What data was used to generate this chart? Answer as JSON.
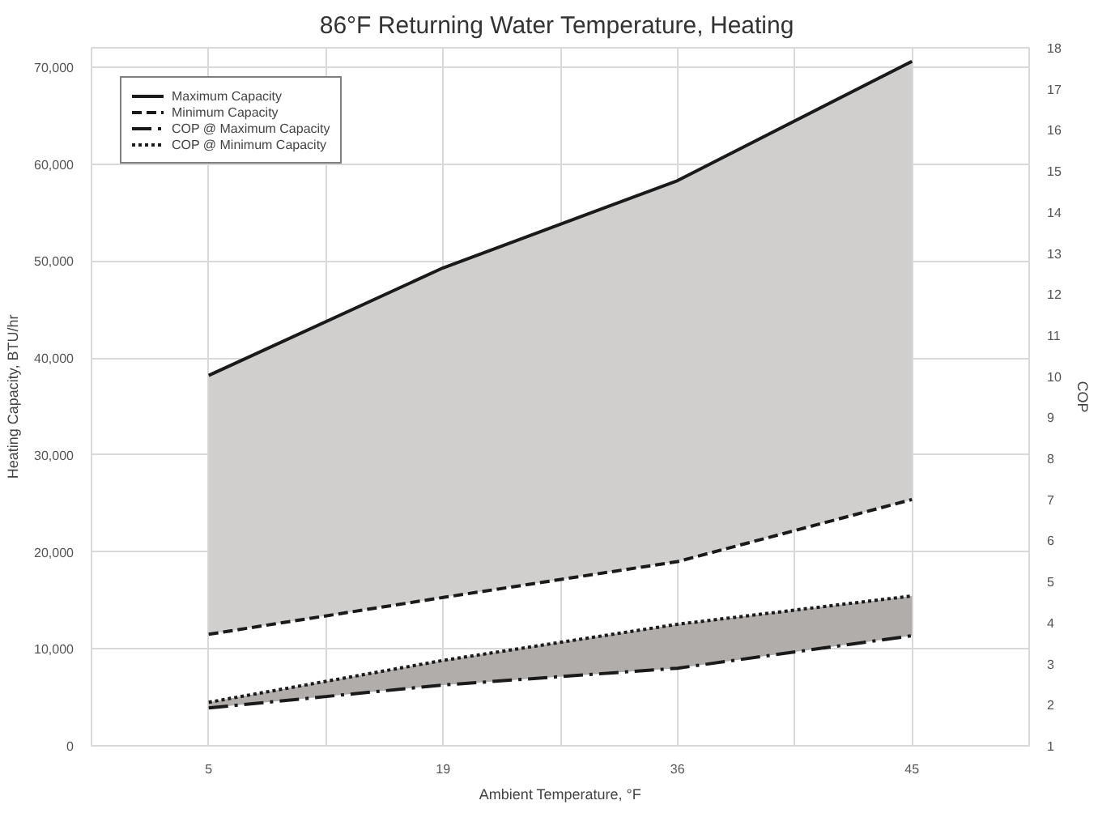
{
  "chart_data": {
    "type": "line",
    "title": "86°F Returning  Water Temperature, Heating",
    "xlabel": "Ambient Temperature, °F",
    "ylabel": "Heating Capacity, BTU/hr",
    "y2label": "COP",
    "categories": [
      "5",
      "19",
      "36",
      "45"
    ],
    "series": [
      {
        "name": "Maximum Capacity",
        "color": "#1a1a1a",
        "line_style": "solid",
        "values": [
          38200,
          49300,
          58300,
          70600
        ],
        "lower": [
          11500,
          15300,
          19000,
          25400
        ],
        "upper": [
          38200,
          49300,
          58300,
          70600
        ]
      },
      {
        "name": "Minimum Capacity",
        "color": "#1a1a1a",
        "line_style": "dashed",
        "values": [
          11500,
          15300,
          19000,
          25400
        ]
      },
      {
        "name": "COP @ Maximum Capacity",
        "color": "#1a1a1a",
        "line_style": "dashdot",
        "axis": "y2",
        "values": [
          1.92,
          2.48,
          2.89,
          3.68
        ],
        "lower": [
          1.92,
          2.48,
          2.89,
          3.68
        ],
        "upper": [
          2.06,
          3.08,
          3.96,
          4.65
        ]
      },
      {
        "name": "COP @ Minimum Capacity",
        "color": "#1a1a1a",
        "line_style": "dotted",
        "axis": "y2",
        "values": [
          2.06,
          3.08,
          3.96,
          4.65
        ]
      }
    ],
    "ylim": [
      0,
      72000
    ],
    "yticks": [
      {
        "value": 0,
        "label": "0"
      },
      {
        "value": 10000,
        "label": "10,000"
      },
      {
        "value": 20000,
        "label": "20,000"
      },
      {
        "value": 30000,
        "label": "30,000"
      },
      {
        "value": 40000,
        "label": "40,000"
      },
      {
        "value": 50000,
        "label": "50,000"
      },
      {
        "value": 60000,
        "label": "60,000"
      },
      {
        "value": 70000,
        "label": "70,000"
      }
    ],
    "y2lim": [
      1,
      18
    ],
    "y2ticks": [
      1,
      2,
      3,
      4,
      5,
      6,
      7,
      8,
      9,
      10,
      11,
      12,
      13,
      14,
      15,
      16,
      17,
      18
    ],
    "grid": true,
    "legend": "top left"
  }
}
